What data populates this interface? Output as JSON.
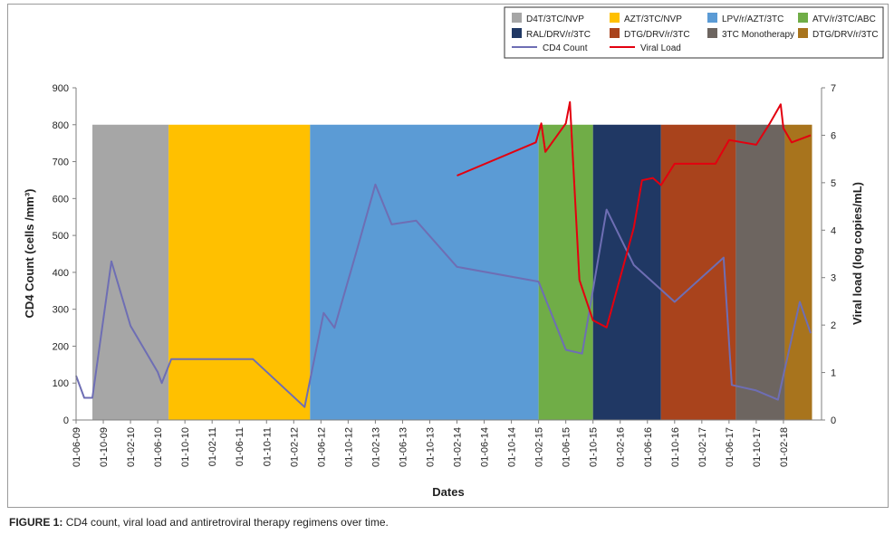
{
  "chart_data": {
    "type": "line",
    "caption_label": "FIGURE 1:",
    "caption_text": "CD4 count, viral load and antiretroviral therapy regimens over time.",
    "xlabel": "Dates",
    "ylabel_left": "CD4 Count (cells /mm³)",
    "ylabel_right": "Viral load (log copies/mL)",
    "ylim_left": [
      0,
      900
    ],
    "ylim_right": [
      0,
      7
    ],
    "yticks_left": [
      0,
      100,
      200,
      300,
      400,
      500,
      600,
      700,
      800,
      900
    ],
    "yticks_right": [
      0,
      1,
      2,
      3,
      4,
      5,
      6,
      7
    ],
    "x_range": [
      0,
      27.4
    ],
    "x_ticks": [
      "01-06-09",
      "01-10-09",
      "01-02-10",
      "01-06-10",
      "01-10-10",
      "01-02-11",
      "01-06-11",
      "01-10-11",
      "01-02-12",
      "01-06-12",
      "01-10-12",
      "01-02-13",
      "01-06-13",
      "01-10-13",
      "01-02-14",
      "01-06-14",
      "01-10-14",
      "01-02-15",
      "01-06-15",
      "01-10-15",
      "01-02-16",
      "01-06-16",
      "01-10-16",
      "01-02-17",
      "01-06-17",
      "01-10-17",
      "01-02-18"
    ],
    "regimens": [
      {
        "name": "D4T/3TC/NVP",
        "color": "#a6a6a6",
        "start": 0.6,
        "end": 3.4,
        "level": 800
      },
      {
        "name": "AZT/3TC/NVP",
        "color": "#ffc000",
        "start": 3.4,
        "end": 8.6,
        "level": 800
      },
      {
        "name": "LPV/r/AZT/3TC",
        "color": "#5b9bd5",
        "start": 8.6,
        "end": 17.0,
        "level": 800
      },
      {
        "name": "ATV/r/3TC/ABC",
        "color": "#70ad47",
        "start": 17.0,
        "end": 19.0,
        "level": 800
      },
      {
        "name": "RAL/DRV/r/3TC",
        "color": "#203864",
        "start": 19.0,
        "end": 21.5,
        "level": 800
      },
      {
        "name": "DTG/DRV/r/3TC",
        "color": "#a9431c",
        "start": 21.5,
        "end": 24.25,
        "level": 800
      },
      {
        "name": "3TC Monotherapy",
        "color": "#6d6560",
        "start": 24.25,
        "end": 26.05,
        "level": 800
      },
      {
        "name": "DTG/DRV/r/3TC",
        "color": "#a8741d",
        "start": 26.05,
        "end": 27.05,
        "level": 800
      }
    ],
    "series": [
      {
        "name": "CD4 Count",
        "axis": "left",
        "color": "#6e6eb4",
        "x": [
          0.0,
          0.3,
          0.6,
          1.3,
          2.0,
          3.0,
          3.15,
          3.5,
          6.5,
          8.4,
          9.1,
          9.5,
          10.3,
          11.0,
          11.6,
          12.5,
          14.0,
          17.0,
          18.0,
          18.6,
          19.5,
          20.5,
          22.0,
          23.8,
          24.1,
          25.0,
          25.8,
          26.6,
          27.0
        ],
        "values": [
          120,
          60,
          60,
          430,
          255,
          130,
          100,
          165,
          165,
          35,
          290,
          250,
          455,
          638,
          530,
          540,
          415,
          375,
          190,
          180,
          570,
          420,
          320,
          440,
          95,
          80,
          55,
          320,
          235
        ]
      },
      {
        "name": "Viral Load",
        "axis": "right",
        "color": "#e3000f",
        "x": [
          14.0,
          16.9,
          17.1,
          17.25,
          18.0,
          18.15,
          18.5,
          19.0,
          19.5,
          20.5,
          20.8,
          21.2,
          21.5,
          22.0,
          23.5,
          24.0,
          25.0,
          25.5,
          25.9,
          26.0,
          26.3,
          27.0
        ],
        "values": [
          5.15,
          5.85,
          6.25,
          5.65,
          6.25,
          6.7,
          2.95,
          2.1,
          1.95,
          4.05,
          5.05,
          5.1,
          4.95,
          5.4,
          5.4,
          5.9,
          5.8,
          6.25,
          6.65,
          6.15,
          5.85,
          6.0
        ]
      }
    ],
    "legend_position": "top-right"
  }
}
